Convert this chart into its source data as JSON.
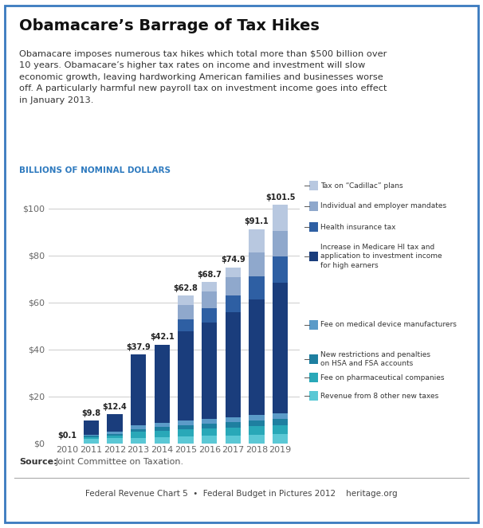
{
  "title": "Obamacare’s Barrage of Tax Hikes",
  "subtitle": "Obamacare imposes numerous tax hikes which total more than $500 billion over\n10 years. Obamacare’s higher tax rates on income and investment will slow\neconomic growth, leaving hardworking American families and businesses worse\noff. A particularly harmful new payroll tax on investment income goes into effect\nin January 2013.",
  "axis_label": "BILLIONS OF NOMINAL DOLLARS",
  "source_bold": "Source:",
  "source_normal": " Joint Committee on Taxation.",
  "footer": "Federal Revenue Chart 5  •  Federal Budget in Pictures 2012    heritage.org",
  "years": [
    2010,
    2011,
    2012,
    2013,
    2014,
    2015,
    2016,
    2017,
    2018,
    2019
  ],
  "bar_totals": [
    "$0.1",
    "$9.8",
    "$12.4",
    "$37.9",
    "$42.1",
    "$62.8",
    "$68.7",
    "$74.9",
    "$91.1",
    "$101.5"
  ],
  "segments": [
    {
      "name": "Revenue from 8 other new taxes",
      "values": [
        0.1,
        2.0,
        2.2,
        2.5,
        2.7,
        3.0,
        3.2,
        3.5,
        3.8,
        4.1
      ],
      "color": "#5bc8d5"
    },
    {
      "name": "Fee on pharmaceutical companies",
      "values": [
        0.0,
        0.8,
        1.0,
        2.5,
        2.8,
        3.0,
        3.2,
        3.4,
        3.6,
        3.8
      ],
      "color": "#29a8b8"
    },
    {
      "name": "New restrictions and penalties\non HSA and FSA accounts",
      "values": [
        0.0,
        0.5,
        0.8,
        1.2,
        1.5,
        1.8,
        2.0,
        2.2,
        2.4,
        2.6
      ],
      "color": "#1e7fa0"
    },
    {
      "name": "Fee on medical device manufacturers",
      "values": [
        0.0,
        0.5,
        0.9,
        1.7,
        1.9,
        2.0,
        2.1,
        2.2,
        2.3,
        2.4
      ],
      "color": "#5b9bc8"
    },
    {
      "name": "Increase in Medicare HI tax and\napplication to investment income\nfor high earners",
      "values": [
        0.0,
        6.0,
        7.5,
        30.0,
        33.2,
        38.0,
        41.0,
        44.6,
        49.0,
        55.6
      ],
      "color": "#1a3d7c"
    },
    {
      "name": "Health insurance tax",
      "values": [
        0.0,
        0.0,
        0.0,
        0.0,
        0.0,
        5.0,
        6.2,
        7.0,
        10.0,
        11.0
      ],
      "color": "#2e5fa3"
    },
    {
      "name": "Individual and employer mandates",
      "values": [
        0.0,
        0.0,
        0.0,
        0.0,
        0.0,
        6.0,
        7.0,
        8.0,
        10.0,
        11.0
      ],
      "color": "#8fa8cc"
    },
    {
      "name": "Tax on “Cadillac” plans",
      "values": [
        0.0,
        0.0,
        0.0,
        0.0,
        0.0,
        4.0,
        4.0,
        4.0,
        10.0,
        11.0
      ],
      "color": "#b8c8e0"
    }
  ],
  "ylim": [
    0,
    110
  ],
  "yticks": [
    0,
    20,
    40,
    60,
    80,
    100
  ],
  "bg_color": "#ffffff",
  "plot_bg_color": "#ffffff",
  "title_color": "#111111",
  "subtitle_color": "#333333",
  "axis_label_color": "#2e7abf",
  "grid_color": "#cccccc",
  "bar_width": 0.65,
  "border_color": "#3a7abf"
}
